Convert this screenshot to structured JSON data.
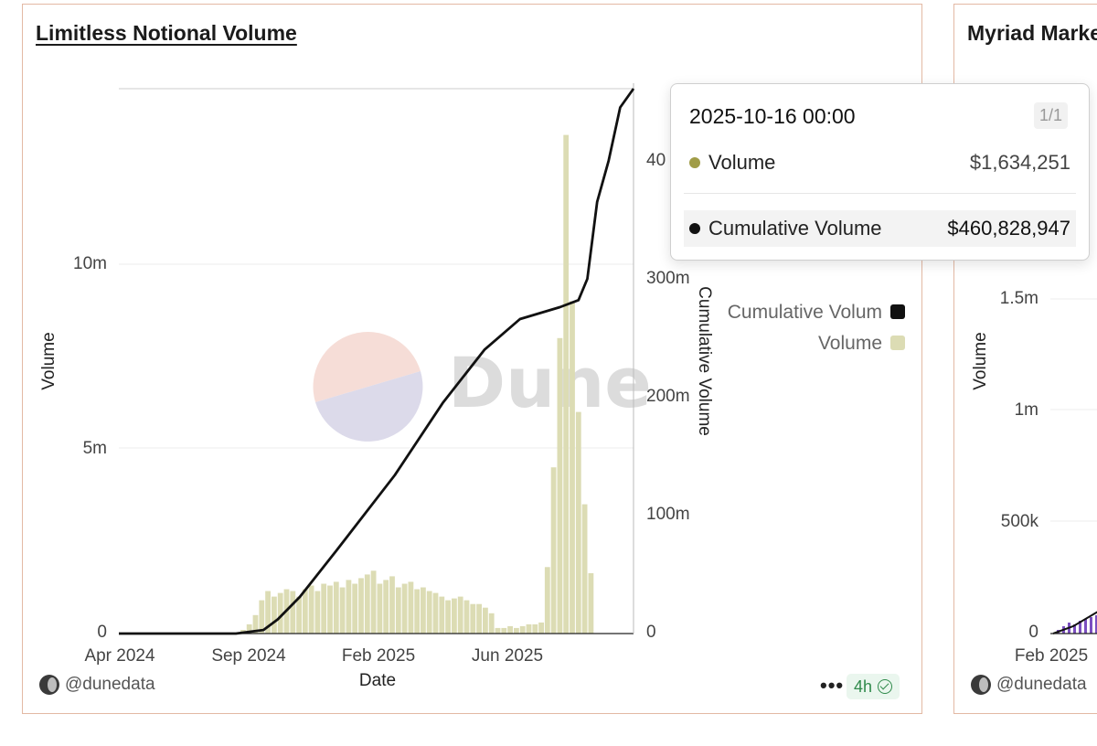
{
  "card1": {
    "title": "Limitless Notional Volume",
    "footer_handle": "@dunedata",
    "refresh_badge": "4h",
    "menu_label": "•••",
    "watermark": "Dune"
  },
  "card2": {
    "title": "Myriad Marke",
    "footer_handle": "@dunedata",
    "yaxis_title": "Volume",
    "y_ticks": [
      "1.5m",
      "1m",
      "500k",
      "0"
    ],
    "x_ticks": [
      "Feb 2025"
    ]
  },
  "tooltip": {
    "date": "2025-10-16 00:00",
    "page": "1/1",
    "rows": [
      {
        "label": "Volume",
        "value": "$1,634,251",
        "color": "#a09c47"
      },
      {
        "label": "Cumulative Volume",
        "value": "$460,828,947",
        "color": "#111111"
      }
    ]
  },
  "chart_data": [
    {
      "type": "bar+line",
      "title": "Limitless Notional Volume",
      "xlabel": "Date",
      "ylabel": "Volume",
      "y2label": "Cumulative Volume",
      "x_ticks": [
        "Apr 2024",
        "Sep 2024",
        "Feb 2025",
        "Jun 2025"
      ],
      "y_ticks": [
        "0",
        "5m",
        "10m"
      ],
      "y2_ticks": [
        "0",
        "100m",
        "200m",
        "300m",
        "40"
      ],
      "ylim": [
        0,
        14800000
      ],
      "y2lim": [
        0,
        460828947
      ],
      "legend": [
        {
          "name": "Cumulative Volum",
          "color": "#111111"
        },
        {
          "name": "Volume",
          "color": "#dcdcb4"
        }
      ],
      "legend_position": "right",
      "x_range": [
        "2024-03-15",
        "2025-10-16"
      ],
      "volume_weekly": {
        "start": "2024-03-15",
        "step_days": 7,
        "values": [
          0,
          0,
          0,
          0,
          0,
          0,
          0,
          0,
          0,
          0,
          0,
          0,
          0,
          0,
          0,
          0,
          0,
          0,
          0,
          0,
          100000,
          250000,
          500000,
          900000,
          1150000,
          1000000,
          1100000,
          1200000,
          1150000,
          1000000,
          1200000,
          1300000,
          1150000,
          1350000,
          1300000,
          1400000,
          1250000,
          1450000,
          1350000,
          1500000,
          1600000,
          1700000,
          1350000,
          1450000,
          1550000,
          1250000,
          1350000,
          1400000,
          1200000,
          1250000,
          1150000,
          1100000,
          1000000,
          900000,
          950000,
          1000000,
          900000,
          800000,
          800000,
          700000,
          550000,
          150000,
          150000,
          200000,
          150000,
          200000,
          250000,
          250000,
          300000,
          1800000,
          4500000,
          8000000,
          13500000,
          9000000,
          6000000,
          3500000,
          1634251
        ]
      },
      "cumulative_series": {
        "x": [
          "2024-03-15",
          "2024-07-25",
          "2024-08-25",
          "2024-09-10",
          "2024-10-05",
          "2024-11-15",
          "2025-01-20",
          "2025-03-15",
          "2025-05-01",
          "2025-06-10",
          "2025-07-25",
          "2025-08-15",
          "2025-08-25",
          "2025-09-05",
          "2025-09-18",
          "2025-10-01",
          "2025-10-16"
        ],
        "y": [
          0,
          0,
          3000000,
          12000000,
          31000000,
          70000000,
          134000000,
          195000000,
          240000000,
          266000000,
          276000000,
          282000000,
          300000000,
          365000000,
          400000000,
          445000000,
          460828947
        ]
      },
      "highlight_date": "2025-10-16"
    }
  ]
}
